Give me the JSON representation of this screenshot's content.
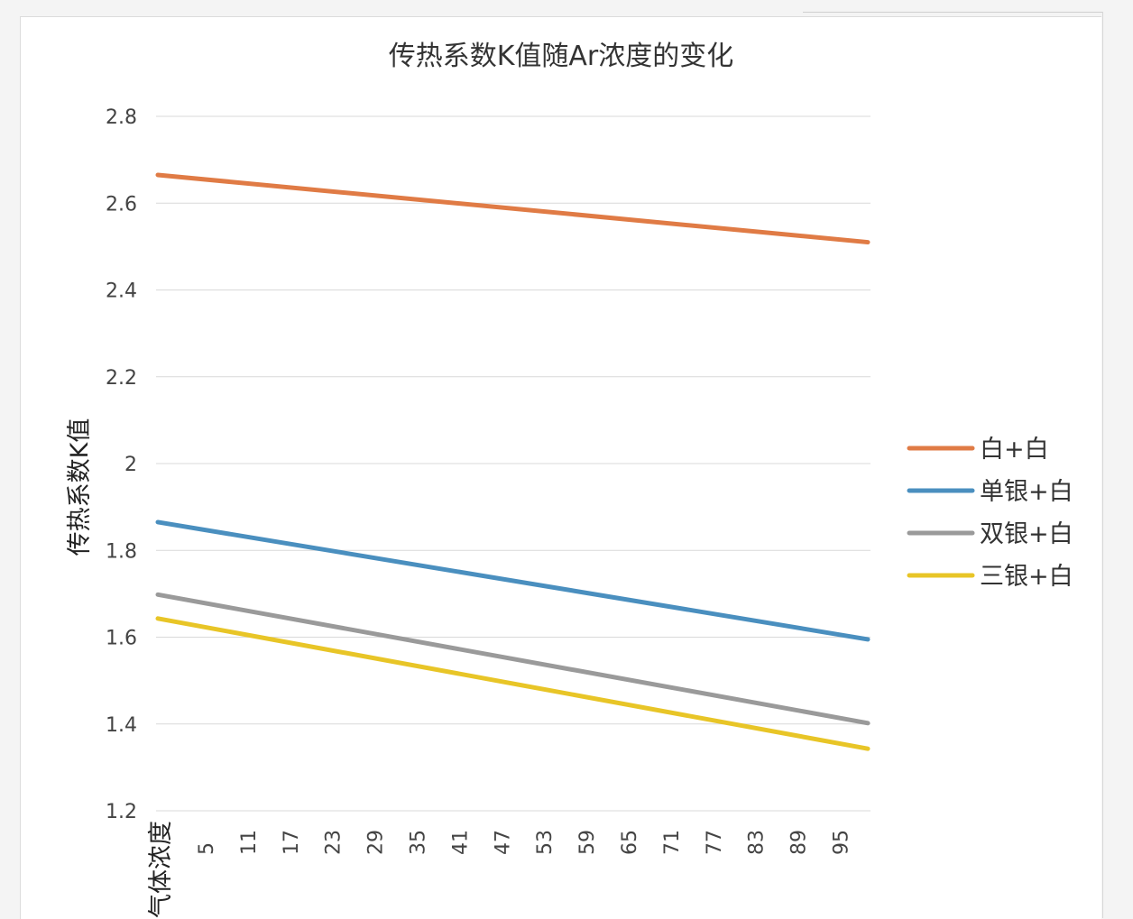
{
  "chart_data": {
    "type": "line",
    "title": "传热系数K值随Ar浓度的变化",
    "ylabel": "传热系数K值",
    "xlabel": "气体浓度",
    "ylim": [
      1.2,
      2.8
    ],
    "yticks": [
      "2.8",
      "2.6",
      "2.4",
      "2.2",
      "2",
      "1.8",
      "1.6",
      "1.4",
      "1.2"
    ],
    "x_tick_labels": [
      "5",
      "11",
      "17",
      "23",
      "29",
      "35",
      "41",
      "47",
      "53",
      "59",
      "65",
      "71",
      "77",
      "83",
      "89",
      "95"
    ],
    "x_range": [
      0,
      100
    ],
    "grid": "horizontal",
    "legend_position": "right",
    "series": [
      {
        "name": "白+白",
        "color": "#e07b45",
        "values_at_x": {
          "0": 2.665,
          "100": 2.51
        }
      },
      {
        "name": "单银+白",
        "color": "#4a8fbf",
        "values_at_x": {
          "0": 1.865,
          "100": 1.595
        }
      },
      {
        "name": "双银+白",
        "color": "#9a9a9a",
        "values_at_x": {
          "0": 1.698,
          "100": 1.402
        }
      },
      {
        "name": "三银+白",
        "color": "#e8c527",
        "values_at_x": {
          "0": 1.643,
          "100": 1.343
        }
      }
    ]
  }
}
